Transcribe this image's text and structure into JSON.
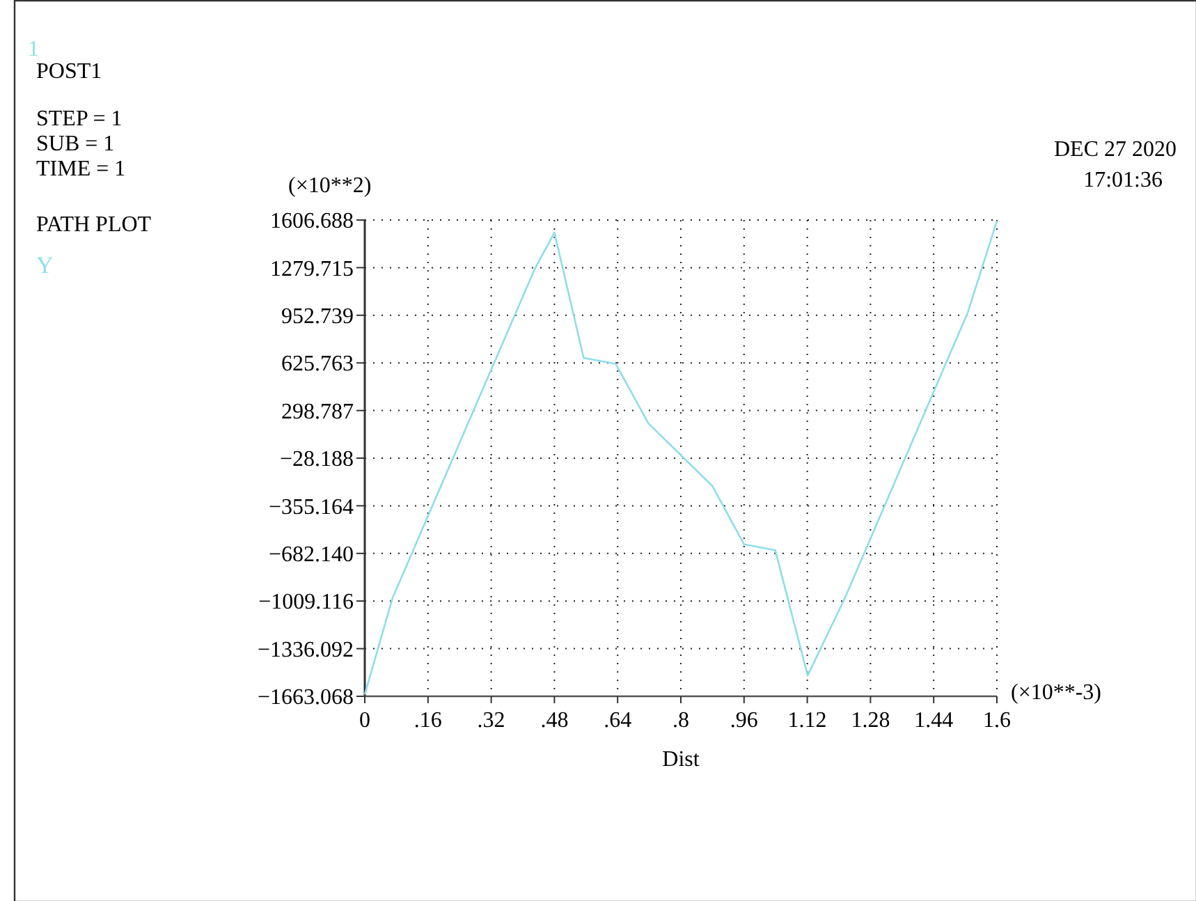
{
  "chart_data": {
    "type": "line",
    "xlabel": "Dist",
    "ylabel": "(×10**2)",
    "x": [
      0,
      0.07,
      0.43,
      0.48,
      0.554,
      0.635,
      0.718,
      0.88,
      0.96,
      1.039,
      1.121,
      1.215,
      1.526,
      1.6
    ],
    "series": [
      {
        "name": "Y",
        "color": "#8fdde9",
        "values": [
          -1650,
          -990,
          1270,
          1520,
          660,
          620,
          210,
          -220,
          -620,
          -660,
          -1520,
          -990,
          970,
          1600
        ]
      }
    ],
    "xlim": [
      0,
      1.6
    ],
    "xticks": [
      0,
      {
        "value": 0.16,
        "label": ".16"
      },
      {
        "value": 0.32,
        "label": ".32"
      },
      {
        "value": 0.48,
        "label": ".48"
      },
      {
        "value": 0.64,
        "label": ".64"
      },
      {
        "value": 0.8,
        "label": ".8"
      },
      {
        "value": 0.96,
        "label": ".96"
      },
      {
        "value": 1.12,
        "label": "1.12"
      },
      {
        "value": 1.28,
        "label": "1.28"
      },
      {
        "value": 1.44,
        "label": "1.44"
      },
      1.6
    ],
    "ylim": [
      -1663.068,
      1606.688
    ],
    "yticks": [
      {
        "value": -1663.068,
        "label": "−1663.068"
      },
      {
        "value": -1336.092,
        "label": "−1336.092"
      },
      {
        "value": -1009.116,
        "label": "−1009.116"
      },
      {
        "value": -682.14,
        "label": "−682.140"
      },
      {
        "value": -355.164,
        "label": "−355.164"
      },
      {
        "value": -28.188,
        "label": "−28.188"
      },
      {
        "value": 298.787,
        "label": "298.787"
      },
      {
        "value": 625.763,
        "label": "625.763"
      },
      {
        "value": 952.739,
        "label": "952.739"
      },
      {
        "value": 1279.715,
        "label": "1279.715"
      },
      {
        "value": 1606.688,
        "label": "1606.688"
      }
    ],
    "grid": true,
    "legend": "left",
    "line_style": "solid",
    "marker": "none",
    "annotations": [
      "(×10**-3)",
      "1",
      "POST1",
      "STEP = 1",
      "SUB = 1",
      "TIME = 1",
      "PATH PLOT",
      "DEC 27 2020",
      "17:01:36"
    ]
  }
}
